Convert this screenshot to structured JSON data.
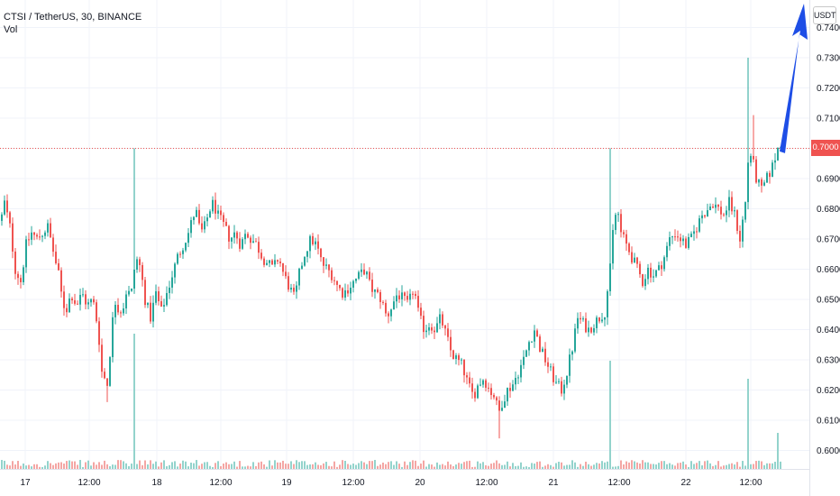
{
  "header": {
    "symbol_line": "CTSI / TetherUS, 30, BINANCE",
    "indicator": "Vol"
  },
  "currency_button": "USDT",
  "current_price_label": "0.7000",
  "colors": {
    "up": "#26a69a",
    "down": "#ef5350",
    "grid": "#f0f3fa",
    "arrow": "#1e4ee6",
    "price_line": "#ef5350"
  },
  "chart_data": {
    "type": "candlestick",
    "ylim": [
      0.592,
      0.748
    ],
    "yticks": [
      "0.6000",
      "0.6100",
      "0.6200",
      "0.6300",
      "0.6400",
      "0.6500",
      "0.6600",
      "0.6700",
      "0.6800",
      "0.6900",
      "0.7000",
      "0.7100",
      "0.7200",
      "0.7300",
      "0.7400"
    ],
    "xticks": [
      "17",
      "12:00",
      "18",
      "12:00",
      "19",
      "12:00",
      "20",
      "12:00",
      "21",
      "12:00",
      "22",
      "12:00"
    ],
    "horizontal_line": 0.7,
    "path_points": [
      [
        0,
        0.676
      ],
      [
        4,
        0.682
      ],
      [
        10,
        0.674
      ],
      [
        16,
        0.66
      ],
      [
        22,
        0.656
      ],
      [
        28,
        0.668
      ],
      [
        34,
        0.672
      ],
      [
        40,
        0.67
      ],
      [
        46,
        0.672
      ],
      [
        52,
        0.674
      ],
      [
        58,
        0.666
      ],
      [
        64,
        0.658
      ],
      [
        68,
        0.65
      ],
      [
        72,
        0.646
      ],
      [
        78,
        0.652
      ],
      [
        84,
        0.648
      ],
      [
        90,
        0.652
      ],
      [
        96,
        0.648
      ],
      [
        102,
        0.65
      ],
      [
        108,
        0.64
      ],
      [
        112,
        0.626
      ],
      [
        118,
        0.622
      ],
      [
        122,
        0.636
      ],
      [
        126,
        0.65
      ],
      [
        132,
        0.646
      ],
      [
        136,
        0.648
      ],
      [
        140,
        0.654
      ],
      [
        144,
        0.65
      ],
      [
        148,
        0.66
      ],
      [
        152,
        0.664
      ],
      [
        156,
        0.658
      ],
      [
        160,
        0.65
      ],
      [
        166,
        0.644
      ],
      [
        172,
        0.652
      ],
      [
        178,
        0.646
      ],
      [
        184,
        0.652
      ],
      [
        190,
        0.658
      ],
      [
        196,
        0.664
      ],
      [
        202,
        0.668
      ],
      [
        208,
        0.672
      ],
      [
        212,
        0.676
      ],
      [
        216,
        0.68
      ],
      [
        220,
        0.674
      ],
      [
        224,
        0.672
      ],
      [
        228,
        0.676
      ],
      [
        232,
        0.68
      ],
      [
        236,
        0.682
      ],
      [
        240,
        0.678
      ],
      [
        244,
        0.676
      ],
      [
        248,
        0.674
      ],
      [
        254,
        0.67
      ],
      [
        260,
        0.672
      ],
      [
        266,
        0.668
      ],
      [
        272,
        0.672
      ],
      [
        278,
        0.67
      ],
      [
        284,
        0.668
      ],
      [
        290,
        0.664
      ],
      [
        296,
        0.662
      ],
      [
        302,
        0.66
      ],
      [
        308,
        0.664
      ],
      [
        314,
        0.658
      ],
      [
        320,
        0.654
      ],
      [
        326,
        0.65
      ],
      [
        332,
        0.66
      ],
      [
        338,
        0.666
      ],
      [
        344,
        0.67
      ],
      [
        350,
        0.668
      ],
      [
        356,
        0.662
      ],
      [
        362,
        0.66
      ],
      [
        368,
        0.658
      ],
      [
        374,
        0.654
      ],
      [
        380,
        0.652
      ],
      [
        386,
        0.654
      ],
      [
        392,
        0.656
      ],
      [
        398,
        0.658
      ],
      [
        404,
        0.66
      ],
      [
        410,
        0.654
      ],
      [
        416,
        0.652
      ],
      [
        422,
        0.65
      ],
      [
        428,
        0.644
      ],
      [
        434,
        0.648
      ],
      [
        440,
        0.652
      ],
      [
        446,
        0.65
      ],
      [
        452,
        0.648
      ],
      [
        458,
        0.654
      ],
      [
        464,
        0.644
      ],
      [
        470,
        0.64
      ],
      [
        476,
        0.642
      ],
      [
        482,
        0.64
      ],
      [
        488,
        0.644
      ],
      [
        494,
        0.638
      ],
      [
        500,
        0.632
      ],
      [
        506,
        0.63
      ],
      [
        512,
        0.628
      ],
      [
        518,
        0.622
      ],
      [
        524,
        0.618
      ],
      [
        530,
        0.622
      ],
      [
        536,
        0.624
      ],
      [
        542,
        0.62
      ],
      [
        548,
        0.618
      ],
      [
        552,
        0.612
      ],
      [
        556,
        0.616
      ],
      [
        562,
        0.62
      ],
      [
        568,
        0.622
      ],
      [
        574,
        0.626
      ],
      [
        580,
        0.63
      ],
      [
        586,
        0.636
      ],
      [
        592,
        0.64
      ],
      [
        598,
        0.634
      ],
      [
        604,
        0.63
      ],
      [
        610,
        0.626
      ],
      [
        616,
        0.622
      ],
      [
        622,
        0.62
      ],
      [
        628,
        0.626
      ],
      [
        634,
        0.634
      ],
      [
        640,
        0.644
      ],
      [
        646,
        0.642
      ],
      [
        652,
        0.64
      ],
      [
        658,
        0.642
      ],
      [
        664,
        0.644
      ],
      [
        670,
        0.646
      ],
      [
        676,
        0.66
      ],
      [
        680,
        0.676
      ],
      [
        684,
        0.68
      ],
      [
        688,
        0.672
      ],
      [
        694,
        0.668
      ],
      [
        700,
        0.664
      ],
      [
        706,
        0.66
      ],
      [
        712,
        0.656
      ],
      [
        718,
        0.66
      ],
      [
        724,
        0.658
      ],
      [
        730,
        0.66
      ],
      [
        736,
        0.664
      ],
      [
        742,
        0.67
      ],
      [
        748,
        0.672
      ],
      [
        754,
        0.67
      ],
      [
        760,
        0.668
      ],
      [
        766,
        0.67
      ],
      [
        772,
        0.674
      ],
      [
        778,
        0.678
      ],
      [
        784,
        0.68
      ],
      [
        790,
        0.682
      ],
      [
        796,
        0.68
      ],
      [
        802,
        0.678
      ],
      [
        808,
        0.682
      ],
      [
        814,
        0.678
      ],
      [
        820,
        0.67
      ],
      [
        826,
        0.682
      ],
      [
        830,
        0.7
      ],
      [
        834,
        0.696
      ],
      [
        838,
        0.69
      ],
      [
        844,
        0.686
      ],
      [
        850,
        0.69
      ],
      [
        856,
        0.694
      ],
      [
        862,
        0.7
      ],
      [
        868,
        0.704
      ]
    ],
    "spikes_high": [
      [
        148,
        0.7
      ],
      [
        677,
        0.7
      ],
      [
        829,
        0.73
      ],
      [
        834,
        0.711
      ]
    ],
    "volume_spikes": [
      [
        148,
        0.15
      ],
      [
        677,
        0.12
      ],
      [
        829,
        0.1
      ],
      [
        862,
        0.04
      ]
    ],
    "arrow": {
      "from": [
        868,
        0.699
      ],
      "to": [
        892,
        0.746
      ]
    }
  }
}
